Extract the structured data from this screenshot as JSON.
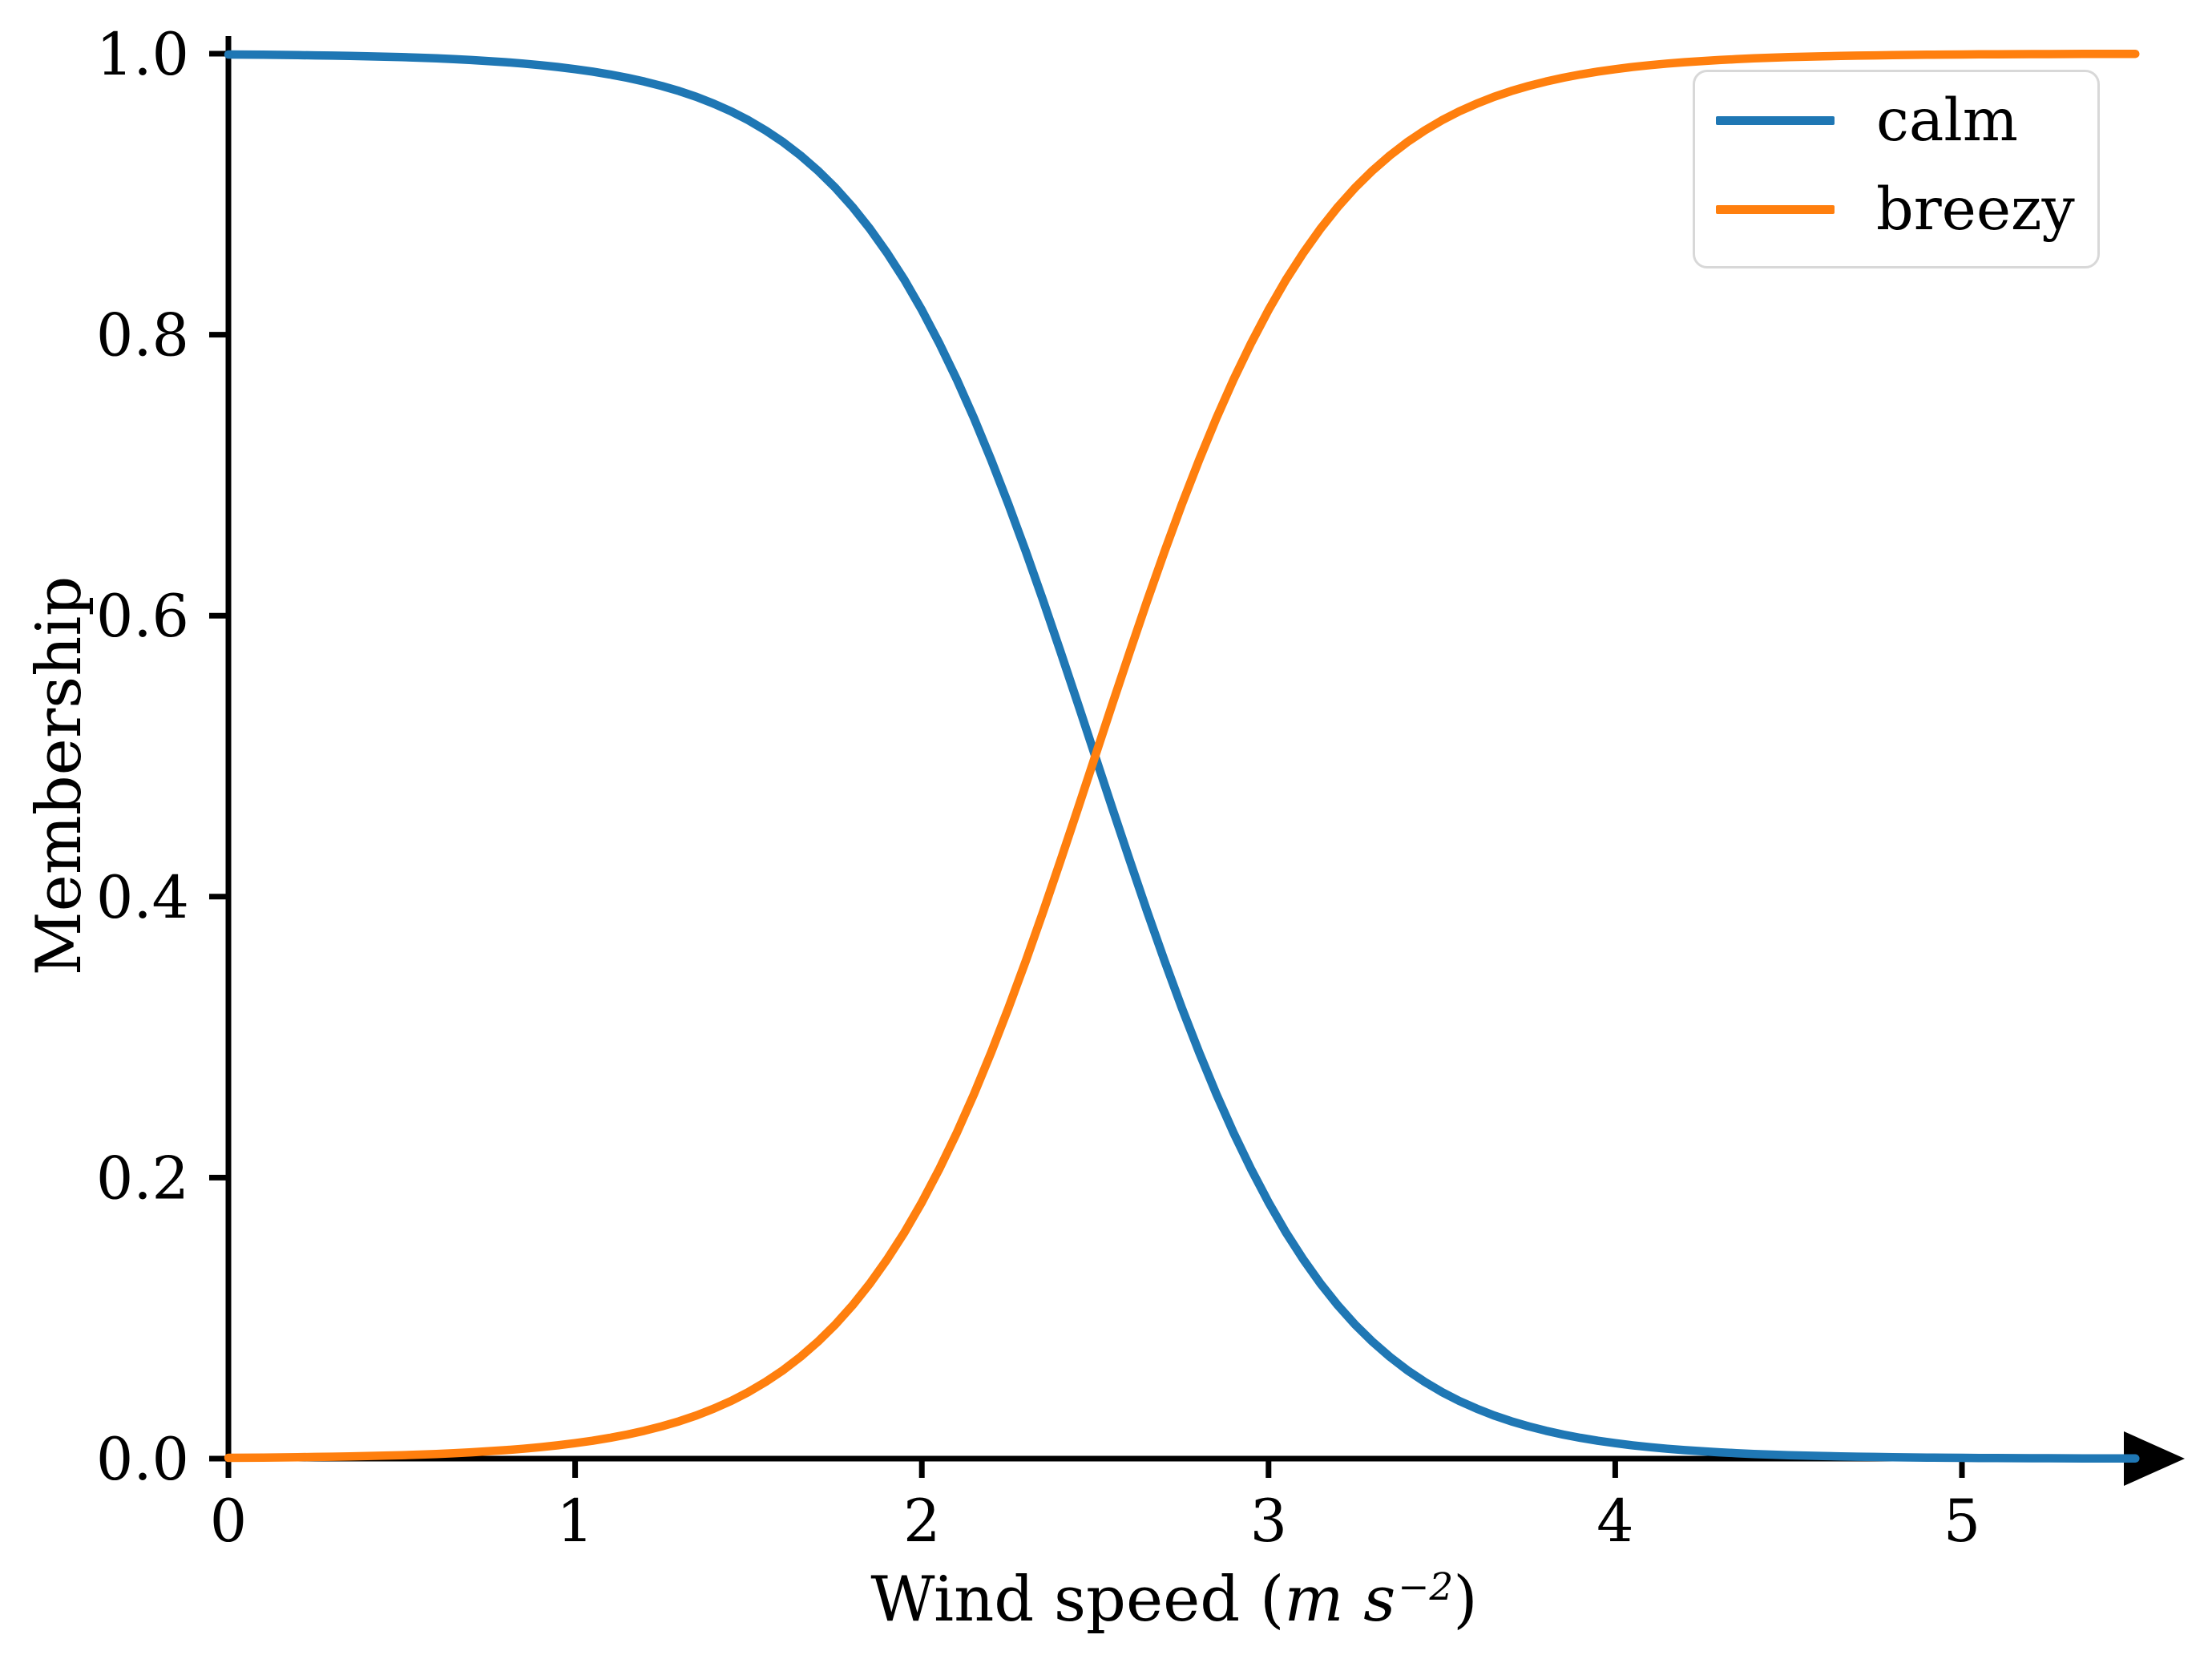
{
  "figure": {
    "background": "#ffffff",
    "text_color": "#000000",
    "axis_color": "#000000"
  },
  "chart_data": {
    "type": "line",
    "title": "",
    "xlabel": "Wind speed (m s⁻²)",
    "xlabel_parts": {
      "prefix": "Wind speed (",
      "unit": "m s",
      "exponent": "−2",
      "suffix": ")"
    },
    "ylabel": "Membership",
    "xlim": [
      0,
      5.63
    ],
    "ylim": [
      0,
      1.013
    ],
    "grid": false,
    "x_axis_arrow": true,
    "x_ticks": {
      "values": [
        0,
        1,
        2,
        3,
        4,
        5
      ],
      "labels": [
        "0",
        "1",
        "2",
        "3",
        "4",
        "5"
      ]
    },
    "y_ticks": {
      "values": [
        0.0,
        0.2,
        0.4,
        0.6,
        0.8,
        1.0
      ],
      "labels": [
        "0.0",
        "0.2",
        "0.4",
        "0.6",
        "0.8",
        "1.0"
      ]
    },
    "legend": {
      "location": "upper right",
      "entries": [
        "calm",
        "breezy"
      ]
    },
    "x": [
      0,
      0.25,
      0.5,
      0.75,
      1,
      1.25,
      1.5,
      1.75,
      2,
      2.25,
      2.5,
      2.75,
      3,
      3.25,
      3.5,
      3.75,
      4,
      4.25,
      4.5,
      4.75,
      5,
      5.25,
      5.5
    ],
    "series": [
      {
        "name": "calm",
        "color": "#1f77b4",
        "model": {
          "type": "sigmoid",
          "a": -3,
          "c": 2.5
        },
        "values": [
          0.9994,
          0.9988,
          0.9975,
          0.9948,
          0.989,
          0.977,
          0.9526,
          0.9046,
          0.8176,
          0.6792,
          0.5,
          0.3208,
          0.1824,
          0.0954,
          0.0474,
          0.023,
          0.011,
          0.0052,
          0.0025,
          0.0012,
          0.0006,
          0.0003,
          0.0001
        ]
      },
      {
        "name": "breezy",
        "color": "#ff7f0e",
        "model": {
          "type": "sigmoid",
          "a": 3,
          "c": 2.5
        },
        "values": [
          0.0006,
          0.0012,
          0.0025,
          0.0052,
          0.011,
          0.023,
          0.0474,
          0.0954,
          0.1824,
          0.3208,
          0.5,
          0.6792,
          0.8176,
          0.9046,
          0.9526,
          0.977,
          0.989,
          0.9948,
          0.9975,
          0.9988,
          0.9994,
          0.9997,
          0.9999
        ]
      }
    ],
    "crossover": {
      "x": 2.5,
      "y": 0.5
    }
  }
}
